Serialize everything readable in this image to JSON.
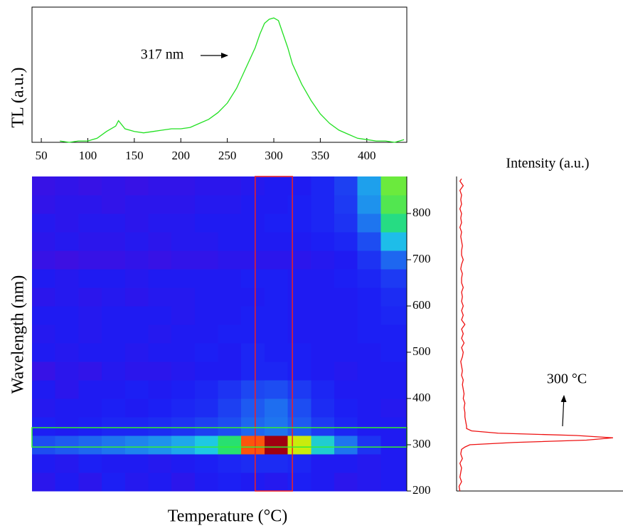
{
  "chart_data": [
    {
      "type": "line",
      "y_label": "TL (a.u.)",
      "annotation": "317 nm",
      "x": [
        70,
        80,
        90,
        100,
        110,
        120,
        130,
        133,
        140,
        150,
        160,
        170,
        180,
        190,
        200,
        210,
        220,
        230,
        240,
        250,
        260,
        270,
        280,
        285,
        290,
        295,
        300,
        305,
        310,
        315,
        320,
        330,
        340,
        350,
        360,
        370,
        380,
        390,
        400,
        410,
        420,
        430,
        440
      ],
      "series": [
        {
          "color": "#22e022",
          "values": [
            1,
            0,
            1,
            1,
            3,
            8,
            12,
            16,
            10,
            8,
            7,
            8,
            9,
            10,
            10,
            11,
            14,
            17,
            22,
            29,
            40,
            55,
            70,
            80,
            88,
            91,
            92,
            90,
            80,
            70,
            58,
            43,
            31,
            21,
            14,
            9,
            6,
            3,
            2,
            1,
            1,
            0,
            2
          ]
        }
      ],
      "xlim": [
        40,
        443
      ],
      "ylim": [
        0,
        100
      ],
      "xticks": [
        50,
        100,
        150,
        200,
        250,
        300,
        350,
        400
      ]
    },
    {
      "type": "heatmap",
      "x_label": "Temperature (°C)",
      "y_label": "Wavelength (nm)",
      "xbins": [
        40,
        65,
        90,
        115,
        140,
        165,
        190,
        215,
        240,
        265,
        290,
        315,
        340,
        365,
        390,
        415,
        440
      ],
      "ybins": [
        200,
        240,
        280,
        320,
        360,
        400,
        440,
        480,
        520,
        560,
        600,
        640,
        680,
        720,
        760,
        800,
        840,
        880
      ],
      "z": [
        [
          0.1,
          0.12,
          0.1,
          0.13,
          0.11,
          0.12,
          0.1,
          0.12,
          0.13,
          0.12,
          0.11,
          0.13,
          0.12,
          0.1,
          0.11,
          0.12
        ],
        [
          0.12,
          0.11,
          0.13,
          0.12,
          0.12,
          0.11,
          0.12,
          0.13,
          0.14,
          0.15,
          0.15,
          0.14,
          0.12,
          0.12,
          0.11,
          0.12
        ],
        [
          0.2,
          0.22,
          0.24,
          0.26,
          0.28,
          0.3,
          0.33,
          0.38,
          0.5,
          0.85,
          1.0,
          0.7,
          0.4,
          0.26,
          0.16,
          0.12
        ],
        [
          0.13,
          0.12,
          0.13,
          0.14,
          0.14,
          0.15,
          0.16,
          0.18,
          0.2,
          0.24,
          0.26,
          0.22,
          0.17,
          0.14,
          0.12,
          0.12
        ],
        [
          0.11,
          0.12,
          0.12,
          0.13,
          0.12,
          0.13,
          0.14,
          0.15,
          0.18,
          0.22,
          0.25,
          0.2,
          0.15,
          0.13,
          0.12,
          0.11
        ],
        [
          0.12,
          0.1,
          0.12,
          0.12,
          0.13,
          0.12,
          0.13,
          0.14,
          0.16,
          0.19,
          0.2,
          0.17,
          0.14,
          0.12,
          0.12,
          0.12
        ],
        [
          0.08,
          0.1,
          0.09,
          0.11,
          0.1,
          0.1,
          0.11,
          0.12,
          0.12,
          0.14,
          0.14,
          0.13,
          0.12,
          0.11,
          0.12,
          0.12
        ],
        [
          0.12,
          0.11,
          0.12,
          0.12,
          0.11,
          0.12,
          0.12,
          0.13,
          0.12,
          0.14,
          0.13,
          0.13,
          0.12,
          0.12,
          0.12,
          0.13
        ],
        [
          0.11,
          0.12,
          0.11,
          0.12,
          0.12,
          0.11,
          0.12,
          0.12,
          0.13,
          0.13,
          0.13,
          0.12,
          0.12,
          0.12,
          0.13,
          0.13
        ],
        [
          0.12,
          0.12,
          0.11,
          0.12,
          0.12,
          0.12,
          0.11,
          0.12,
          0.12,
          0.13,
          0.13,
          0.12,
          0.12,
          0.12,
          0.13,
          0.14
        ],
        [
          0.1,
          0.11,
          0.1,
          0.11,
          0.1,
          0.11,
          0.11,
          0.12,
          0.12,
          0.12,
          0.13,
          0.12,
          0.12,
          0.12,
          0.13,
          0.15
        ],
        [
          0.12,
          0.11,
          0.12,
          0.12,
          0.11,
          0.12,
          0.12,
          0.12,
          0.12,
          0.13,
          0.13,
          0.12,
          0.12,
          0.13,
          0.14,
          0.17
        ],
        [
          0.08,
          0.07,
          0.08,
          0.08,
          0.09,
          0.08,
          0.09,
          0.09,
          0.1,
          0.1,
          0.1,
          0.1,
          0.11,
          0.12,
          0.16,
          0.24
        ],
        [
          0.1,
          0.11,
          0.1,
          0.1,
          0.11,
          0.1,
          0.11,
          0.11,
          0.12,
          0.12,
          0.12,
          0.12,
          0.13,
          0.14,
          0.2,
          0.36
        ],
        [
          0.11,
          0.1,
          0.11,
          0.11,
          0.1,
          0.11,
          0.11,
          0.12,
          0.12,
          0.12,
          0.13,
          0.13,
          0.14,
          0.16,
          0.26,
          0.48
        ],
        [
          0.09,
          0.1,
          0.1,
          0.09,
          0.1,
          0.1,
          0.1,
          0.11,
          0.11,
          0.12,
          0.12,
          0.13,
          0.14,
          0.17,
          0.3,
          0.55
        ],
        [
          0.08,
          0.09,
          0.08,
          0.09,
          0.08,
          0.09,
          0.09,
          0.1,
          0.1,
          0.11,
          0.12,
          0.12,
          0.14,
          0.18,
          0.32,
          0.58
        ]
      ],
      "colors": [
        "#6600cc",
        "#1c1cf4",
        "#1e6ef0",
        "#1ec8e8",
        "#28e070",
        "#90f020",
        "#f0e800",
        "#ff3010",
        "#a00010"
      ],
      "xlim": [
        40,
        443
      ],
      "ylim": [
        200,
        880
      ],
      "yticks": [
        200,
        300,
        400,
        500,
        600,
        700,
        800
      ],
      "temperature_window": [
        280,
        320
      ],
      "temperature_window_color": "#ee2222",
      "wavelength_window": [
        295,
        337
      ],
      "wavelength_window_color": "#33ee33"
    },
    {
      "type": "hline",
      "x_label": "Intensity (a.u.)",
      "annotation": "300 °C",
      "y": [
        200,
        210,
        220,
        230,
        240,
        250,
        260,
        270,
        280,
        290,
        295,
        300,
        305,
        310,
        315,
        320,
        325,
        330,
        335,
        340,
        350,
        360,
        370,
        380,
        390,
        400,
        410,
        420,
        430,
        440,
        450,
        460,
        470,
        480,
        490,
        500,
        510,
        520,
        530,
        540,
        550,
        560,
        570,
        580,
        590,
        600,
        610,
        620,
        630,
        640,
        650,
        660,
        670,
        680,
        690,
        700,
        710,
        720,
        730,
        740,
        750,
        760,
        770,
        780,
        790,
        800,
        810,
        820,
        830,
        840,
        850,
        860,
        870,
        875
      ],
      "series": [
        {
          "color": "#ee1111",
          "values": [
            2,
            1.5,
            3,
            2,
            2.5,
            3,
            2,
            3.5,
            2.5,
            3,
            5,
            8,
            35,
            78,
            94,
            72,
            25,
            9,
            6,
            6,
            5.5,
            5,
            5,
            4.5,
            5,
            4,
            4.5,
            4,
            3.5,
            4,
            3,
            3.5,
            3,
            2.5,
            3.5,
            4,
            3,
            4.5,
            3,
            4,
            3,
            5,
            3,
            4,
            3,
            4,
            3,
            3.5,
            3,
            4,
            3,
            3,
            3.5,
            2.5,
            3,
            4,
            3,
            3,
            3.5,
            3,
            2.5,
            3,
            2,
            3,
            2.5,
            3,
            2,
            3,
            2.5,
            3,
            2,
            4,
            2,
            3
          ]
        }
      ],
      "xlim": [
        0,
        100
      ],
      "ylim": [
        200,
        880
      ]
    }
  ]
}
